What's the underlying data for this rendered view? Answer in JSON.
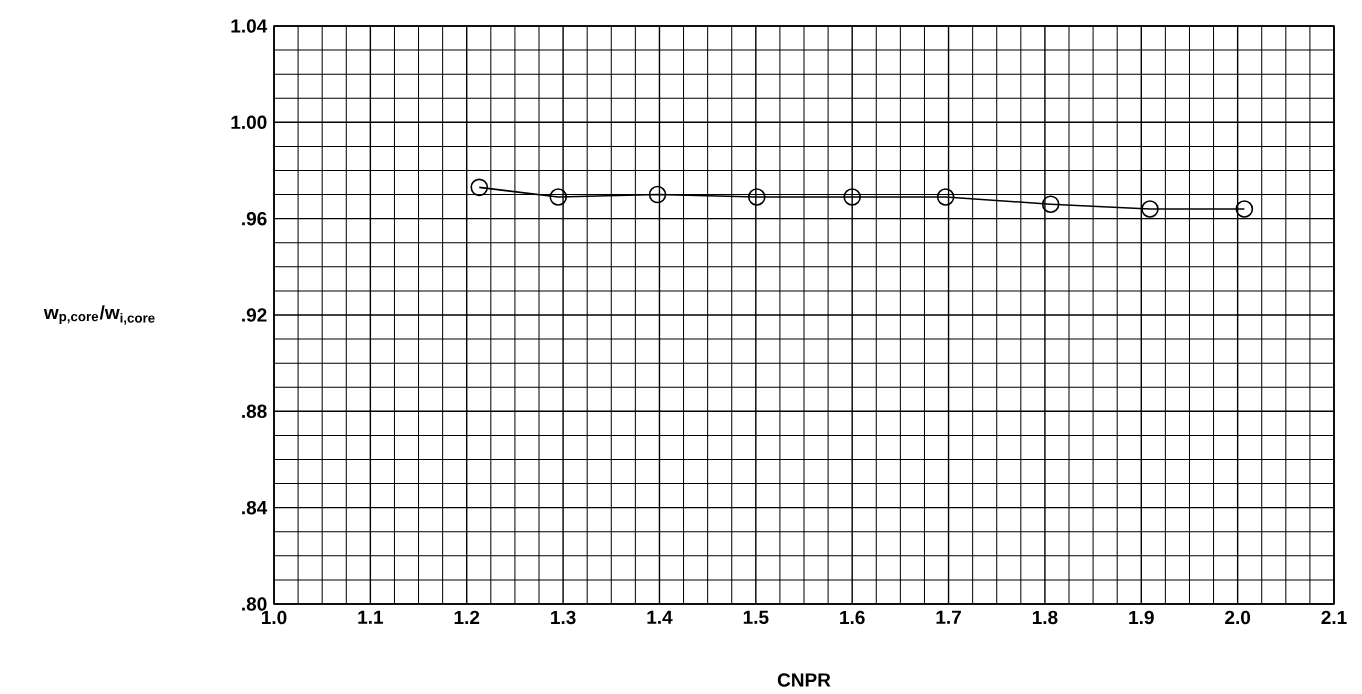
{
  "chart_data": {
    "type": "line",
    "xlabel": "CNPR",
    "ylabel": "w$_{p,core}$/w$_{i,core}$",
    "x": [
      1.213,
      1.295,
      1.398,
      1.501,
      1.6,
      1.697,
      1.806,
      1.909,
      2.007
    ],
    "series": [
      {
        "color": "#000000",
        "values": [
          0.973,
          0.969,
          0.97,
          0.969,
          0.969,
          0.969,
          0.966,
          0.964,
          0.964
        ]
      }
    ],
    "xlim": [
      1.0,
      2.1
    ],
    "ylim": [
      0.8,
      1.04
    ],
    "xticks": [
      {
        "value": 1.0,
        "label": "1.0"
      },
      {
        "value": 1.1,
        "label": "1.1"
      },
      {
        "value": 1.2,
        "label": "1.2"
      },
      {
        "value": 1.3,
        "label": "1.3"
      },
      {
        "value": 1.4,
        "label": "1.4"
      },
      {
        "value": 1.5,
        "label": "1.5"
      },
      {
        "value": 1.6,
        "label": "1.6"
      },
      {
        "value": 1.7,
        "label": "1.7"
      },
      {
        "value": 1.8,
        "label": "1.8"
      },
      {
        "value": 1.9,
        "label": "1.9"
      },
      {
        "value": 2.0,
        "label": "2.0"
      },
      {
        "value": 2.1,
        "label": "2.1"
      }
    ],
    "yticks": [
      {
        "value": 0.8,
        "label": ".80"
      },
      {
        "value": 0.84,
        "label": ".84"
      },
      {
        "value": 0.88,
        "label": ".88"
      },
      {
        "value": 0.92,
        "label": ".92"
      },
      {
        "value": 0.96,
        "label": ".96"
      },
      {
        "value": 1.0,
        "label": "1.00"
      },
      {
        "value": 1.04,
        "label": "1.04"
      }
    ],
    "grid": true,
    "marker": "circle",
    "line_style": "solid"
  }
}
